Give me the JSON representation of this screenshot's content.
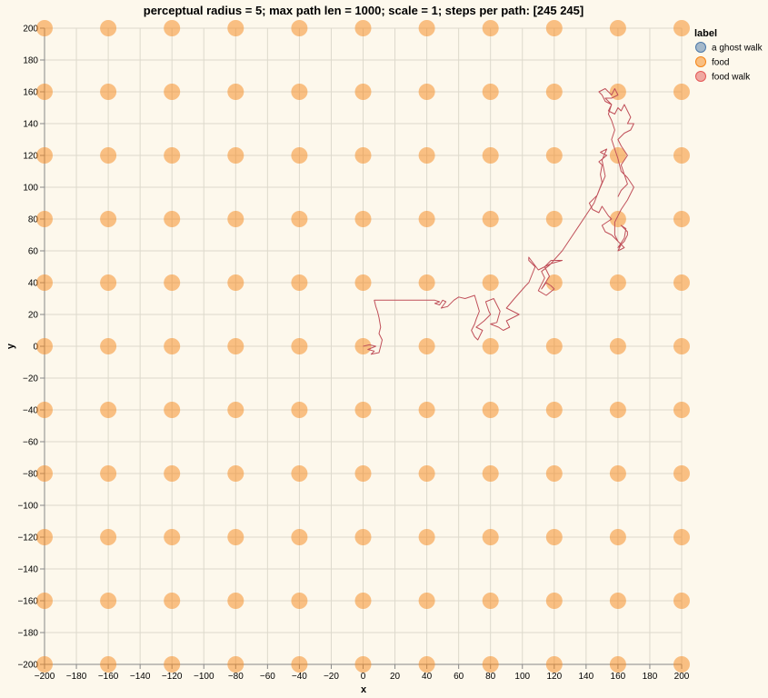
{
  "chart_data": {
    "type": "scatter",
    "title": "perceptual radius = 5;  max path len = 1000;  scale = 1;  steps per path: [245 245]",
    "xlabel": "x",
    "ylabel": "y",
    "xlim": [
      -200,
      200
    ],
    "ylim": [
      -200,
      200
    ],
    "x_ticks": [
      -200,
      -180,
      -160,
      -140,
      -120,
      -100,
      -80,
      -60,
      -40,
      -20,
      0,
      20,
      40,
      60,
      80,
      100,
      120,
      140,
      160,
      180,
      200
    ],
    "y_ticks": [
      -200,
      -180,
      -160,
      -140,
      -120,
      -100,
      -80,
      -60,
      -40,
      -20,
      0,
      20,
      40,
      60,
      80,
      100,
      120,
      140,
      160,
      180,
      200
    ],
    "x_tick_labels": [
      "−200",
      "−180",
      "−160",
      "−140",
      "−120",
      "−100",
      "−80",
      "−60",
      "−40",
      "−20",
      "0",
      "20",
      "40",
      "60",
      "80",
      "100",
      "120",
      "140",
      "160",
      "180",
      "200"
    ],
    "y_tick_labels": [
      "−200",
      "−180",
      "−160",
      "−140",
      "−120",
      "−100",
      "−80",
      "−60",
      "−40",
      "−20",
      "0",
      "20",
      "40",
      "60",
      "80",
      "100",
      "120",
      "140",
      "160",
      "180",
      "200"
    ],
    "grid": true,
    "legend": {
      "title": "label",
      "placement": "top-right",
      "entries": [
        {
          "label": "a ghost walk",
          "color": "#4c78a8"
        },
        {
          "label": "food",
          "color": "#f58518"
        },
        {
          "label": "food walk",
          "color": "#e45756"
        }
      ]
    },
    "food": {
      "x": [
        -200,
        -160,
        -120,
        -80,
        -40,
        0,
        40,
        80,
        120,
        160,
        200
      ],
      "y": [
        -200,
        -160,
        -120,
        -80,
        -40,
        0,
        40,
        80,
        120,
        160,
        200
      ],
      "color": "#f58518"
    },
    "food_walk": {
      "color": "#c0505a",
      "points": [
        [
          0,
          0
        ],
        [
          4,
          1
        ],
        [
          8,
          0
        ],
        [
          3,
          -2
        ],
        [
          7,
          -3
        ],
        [
          5,
          -5
        ],
        [
          10,
          -4
        ],
        [
          11,
          0
        ],
        [
          12,
          4
        ],
        [
          10,
          8
        ],
        [
          11,
          12
        ],
        [
          10,
          18
        ],
        [
          9,
          22
        ],
        [
          8,
          25
        ],
        [
          7,
          29
        ],
        [
          22,
          29
        ],
        [
          35,
          29
        ],
        [
          45,
          29
        ],
        [
          48,
          28
        ],
        [
          45,
          27
        ],
        [
          48,
          26
        ],
        [
          50,
          29
        ],
        [
          52,
          28
        ],
        [
          49,
          24
        ],
        [
          53,
          25
        ],
        [
          57,
          29
        ],
        [
          60,
          31
        ],
        [
          64,
          30
        ],
        [
          70,
          32
        ],
        [
          73,
          22
        ],
        [
          71,
          17
        ],
        [
          70,
          14
        ],
        [
          68,
          10
        ],
        [
          70,
          6
        ],
        [
          72,
          4
        ],
        [
          75,
          10
        ],
        [
          71,
          12
        ],
        [
          76,
          16
        ],
        [
          80,
          20
        ],
        [
          79,
          22
        ],
        [
          77,
          28
        ],
        [
          82,
          30
        ],
        [
          86,
          22
        ],
        [
          84,
          15
        ],
        [
          80,
          14
        ],
        [
          85,
          12
        ],
        [
          88,
          10
        ],
        [
          92,
          12
        ],
        [
          90,
          16
        ],
        [
          94,
          18
        ],
        [
          98,
          20
        ],
        [
          90,
          24
        ],
        [
          95,
          30
        ],
        [
          102,
          38
        ],
        [
          104,
          40
        ],
        [
          108,
          50
        ],
        [
          104,
          54
        ],
        [
          104,
          56
        ],
        [
          110,
          48
        ],
        [
          118,
          52
        ],
        [
          125,
          54
        ],
        [
          118,
          54
        ],
        [
          114,
          50
        ],
        [
          117,
          44
        ],
        [
          112,
          36
        ],
        [
          115,
          40
        ],
        [
          118,
          38
        ],
        [
          120,
          36
        ],
        [
          115,
          32
        ],
        [
          110,
          35
        ],
        [
          114,
          43
        ],
        [
          112,
          47
        ],
        [
          117,
          51
        ],
        [
          125,
          60
        ],
        [
          135,
          75
        ],
        [
          145,
          90
        ],
        [
          150,
          103
        ],
        [
          149,
          108
        ],
        [
          150,
          114
        ],
        [
          148,
          116
        ],
        [
          153,
          120
        ],
        [
          149,
          122
        ],
        [
          153,
          124
        ],
        [
          150,
          117
        ],
        [
          152,
          107
        ],
        [
          149,
          100
        ],
        [
          147,
          95
        ],
        [
          142,
          90
        ],
        [
          144,
          86
        ],
        [
          148,
          84
        ],
        [
          150,
          88
        ],
        [
          154,
          82
        ],
        [
          156,
          80
        ],
        [
          150,
          76
        ],
        [
          152,
          72
        ],
        [
          156,
          70
        ],
        [
          162,
          64
        ],
        [
          160,
          62
        ],
        [
          164,
          68
        ],
        [
          165,
          74
        ],
        [
          162,
          76
        ],
        [
          166,
          72
        ],
        [
          166,
          70
        ],
        [
          164,
          66
        ],
        [
          162,
          64
        ],
        [
          160,
          60
        ],
        [
          164,
          62
        ],
        [
          160,
          66
        ],
        [
          158,
          70
        ],
        [
          158,
          78
        ],
        [
          162,
          86
        ],
        [
          166,
          92
        ],
        [
          170,
          100
        ],
        [
          166,
          106
        ],
        [
          162,
          110
        ],
        [
          160,
          118
        ],
        [
          158,
          124
        ],
        [
          156,
          130
        ],
        [
          158,
          136
        ],
        [
          156,
          142
        ],
        [
          154,
          146
        ],
        [
          156,
          152
        ],
        [
          152,
          154
        ],
        [
          150,
          158
        ],
        [
          148,
          160
        ],
        [
          152,
          162
        ],
        [
          156,
          158
        ],
        [
          158,
          162
        ],
        [
          160,
          158
        ],
        [
          156,
          156
        ],
        [
          152,
          156
        ],
        [
          156,
          152
        ],
        [
          154,
          148
        ],
        [
          158,
          146
        ],
        [
          160,
          150
        ],
        [
          162,
          148
        ],
        [
          164,
          152
        ],
        [
          166,
          148
        ],
        [
          168,
          144
        ],
        [
          166,
          140
        ],
        [
          170,
          140
        ],
        [
          168,
          136
        ],
        [
          164,
          134
        ],
        [
          160,
          130
        ],
        [
          162,
          126
        ],
        [
          166,
          120
        ],
        [
          162,
          114
        ],
        [
          164,
          108
        ],
        [
          166,
          102
        ],
        [
          162,
          98
        ],
        [
          160,
          94
        ]
      ]
    }
  }
}
